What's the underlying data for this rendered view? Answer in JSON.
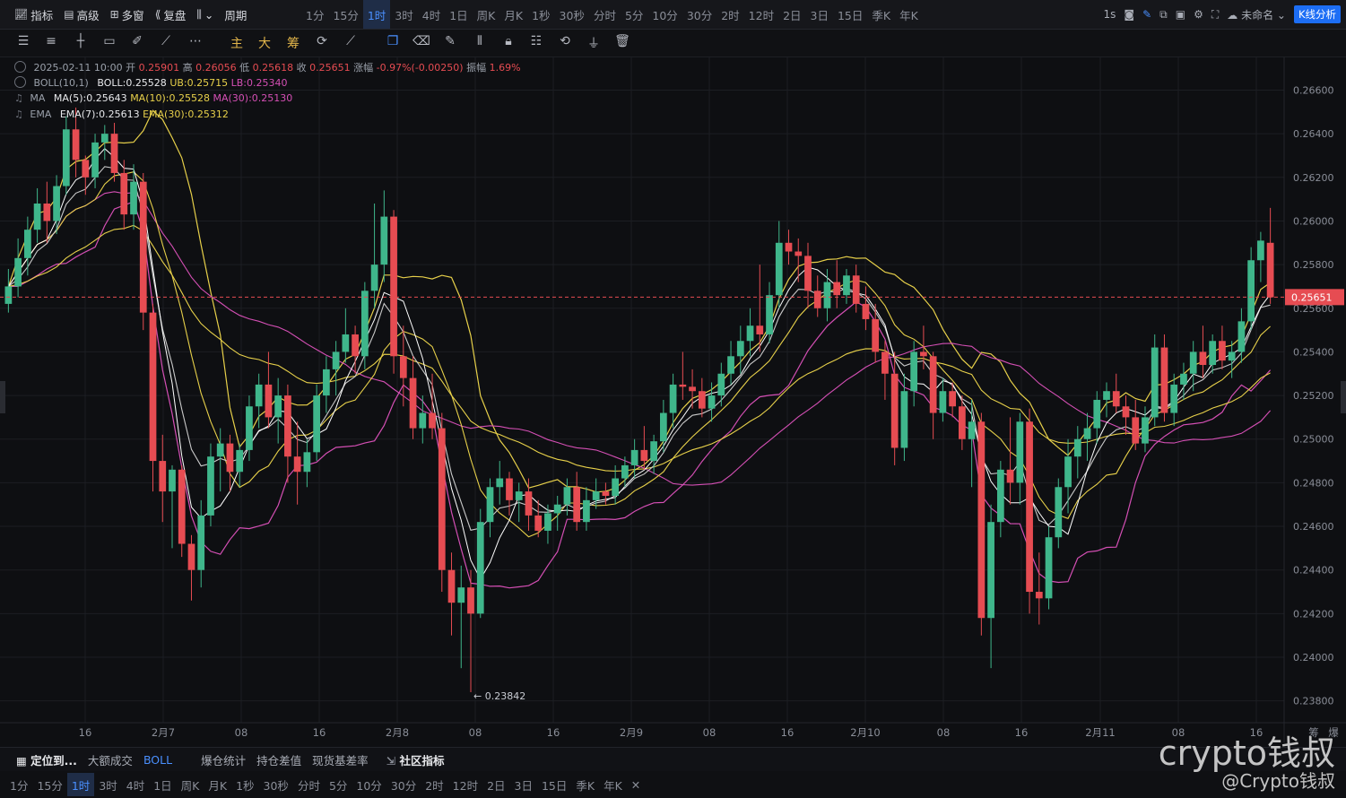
{
  "topbar": {
    "left_items": [
      {
        "icon": "indicator-icon",
        "label": "指标"
      },
      {
        "icon": "advanced-icon",
        "label": "高级"
      },
      {
        "icon": "multi-window-icon",
        "label": "多窗"
      },
      {
        "icon": "replay-icon",
        "label": "复盘"
      },
      {
        "icon": "candle-type-icon",
        "label": "⌄"
      },
      {
        "icon": "period-icon",
        "label": "周期"
      }
    ],
    "timeframes": [
      "1分",
      "15分",
      "1时",
      "3时",
      "4时",
      "1日",
      "周K",
      "月K",
      "1秒",
      "30秒",
      "分时",
      "5分",
      "10分",
      "30分",
      "2时",
      "12时",
      "2日",
      "3日",
      "15日",
      "季K",
      "年K"
    ],
    "active_timeframe": "1时",
    "right": {
      "interval": "1s",
      "layout_name": "未命名",
      "kline_button": "K线分析"
    }
  },
  "drawbar": {
    "tools": [
      "horizontal-lines-icon",
      "list-icon",
      "crosshair-line-icon",
      "rectangle-icon",
      "ruler-icon",
      "trend-line-icon",
      "more-icon"
    ],
    "quick": [
      "主",
      "大",
      "筹"
    ],
    "tools2": [
      "sync-icon",
      "measure-icon",
      "copy-icon",
      "eraser-icon",
      "pen-icon",
      "bars-icon",
      "lock-icon",
      "note-icon",
      "magnet-icon",
      "filter-icon",
      "trash-icon"
    ]
  },
  "legend": {
    "ohlc": {
      "date": "2025-02-11 10:00",
      "open_label": "开",
      "open": "0.25901",
      "high_label": "高",
      "high": "0.26056",
      "low_label": "低",
      "low": "0.25618",
      "close_label": "收",
      "close": "0.25651",
      "chg_label": "涨幅",
      "chg": "-0.97%(-0.00250)",
      "amp_label": "振幅",
      "amp": "1.69%"
    },
    "boll": {
      "name": "BOLL(10,1)",
      "mid": "BOLL:0.25528",
      "ub": "UB:0.25715",
      "lb": "LB:0.25340"
    },
    "ma": {
      "name": "MA",
      "ma5": "MA(5):0.25643",
      "ma10": "MA(10):0.25528",
      "ma30": "MA(30):0.25130"
    },
    "ema": {
      "name": "EMA",
      "ema7": "EMA(7):0.25613",
      "ema30": "EMA(30):0.25312"
    }
  },
  "chart_data": {
    "type": "candlestick",
    "interval": "1h",
    "yrange": [
      0.237,
      0.2675
    ],
    "y_ticks": [
      "0.26600",
      "0.26400",
      "0.26200",
      "0.26000",
      "0.25800",
      "0.25600",
      "0.25400",
      "0.25200",
      "0.25000",
      "0.24800",
      "0.24600",
      "0.24400",
      "0.24200",
      "0.24000",
      "0.23800"
    ],
    "x_labels": [
      "16",
      "2月7",
      "08",
      "16",
      "2月8",
      "08",
      "16",
      "2月9",
      "08",
      "16",
      "2月10",
      "08",
      "16",
      "2月11",
      "08",
      "16",
      "筹",
      "爆"
    ],
    "current_price": "0.25651",
    "low_annotation": "← 0.23842",
    "colors": {
      "up": "#3fb68b",
      "down": "#e64c52",
      "boll": "#e7d04a",
      "ma5": "#ffffff",
      "ma10": "#e7d04a",
      "ma30": "#d44fb4",
      "ema7": "#c9c9c9",
      "ema30": "#e7d04a",
      "current": "#e64c52"
    },
    "candles": [
      {
        "o": 0.2562,
        "h": 0.2578,
        "l": 0.2558,
        "c": 0.257
      },
      {
        "o": 0.257,
        "h": 0.2592,
        "l": 0.2565,
        "c": 0.2583
      },
      {
        "o": 0.2583,
        "h": 0.2602,
        "l": 0.2575,
        "c": 0.2596
      },
      {
        "o": 0.2596,
        "h": 0.2615,
        "l": 0.259,
        "c": 0.2608
      },
      {
        "o": 0.2608,
        "h": 0.2618,
        "l": 0.259,
        "c": 0.26
      },
      {
        "o": 0.26,
        "h": 0.2621,
        "l": 0.2594,
        "c": 0.2616
      },
      {
        "o": 0.2616,
        "h": 0.2648,
        "l": 0.2612,
        "c": 0.2642
      },
      {
        "o": 0.2642,
        "h": 0.2652,
        "l": 0.262,
        "c": 0.2628
      },
      {
        "o": 0.2628,
        "h": 0.263,
        "l": 0.2612,
        "c": 0.262
      },
      {
        "o": 0.262,
        "h": 0.264,
        "l": 0.2615,
        "c": 0.2636
      },
      {
        "o": 0.2636,
        "h": 0.2644,
        "l": 0.2628,
        "c": 0.264
      },
      {
        "o": 0.264,
        "h": 0.2645,
        "l": 0.2618,
        "c": 0.2622
      },
      {
        "o": 0.2622,
        "h": 0.2628,
        "l": 0.2596,
        "c": 0.2603
      },
      {
        "o": 0.2603,
        "h": 0.2626,
        "l": 0.2596,
        "c": 0.2618
      },
      {
        "o": 0.2618,
        "h": 0.2622,
        "l": 0.255,
        "c": 0.2558
      },
      {
        "o": 0.2558,
        "h": 0.2562,
        "l": 0.2476,
        "c": 0.249
      },
      {
        "o": 0.249,
        "h": 0.2502,
        "l": 0.2462,
        "c": 0.2476
      },
      {
        "o": 0.2476,
        "h": 0.2488,
        "l": 0.245,
        "c": 0.2486
      },
      {
        "o": 0.2486,
        "h": 0.2488,
        "l": 0.2446,
        "c": 0.2452
      },
      {
        "o": 0.2452,
        "h": 0.2456,
        "l": 0.2426,
        "c": 0.244
      },
      {
        "o": 0.244,
        "h": 0.2472,
        "l": 0.2432,
        "c": 0.2465
      },
      {
        "o": 0.2465,
        "h": 0.2498,
        "l": 0.246,
        "c": 0.2492
      },
      {
        "o": 0.2492,
        "h": 0.2505,
        "l": 0.2476,
        "c": 0.2498
      },
      {
        "o": 0.2498,
        "h": 0.2502,
        "l": 0.2476,
        "c": 0.2485
      },
      {
        "o": 0.2485,
        "h": 0.2498,
        "l": 0.2478,
        "c": 0.2495
      },
      {
        "o": 0.2495,
        "h": 0.252,
        "l": 0.249,
        "c": 0.2515
      },
      {
        "o": 0.2515,
        "h": 0.253,
        "l": 0.2505,
        "c": 0.2525
      },
      {
        "o": 0.2525,
        "h": 0.254,
        "l": 0.2505,
        "c": 0.251
      },
      {
        "o": 0.251,
        "h": 0.2528,
        "l": 0.2498,
        "c": 0.252
      },
      {
        "o": 0.252,
        "h": 0.2525,
        "l": 0.248,
        "c": 0.2492
      },
      {
        "o": 0.2492,
        "h": 0.2508,
        "l": 0.247,
        "c": 0.2485
      },
      {
        "o": 0.2485,
        "h": 0.25,
        "l": 0.2478,
        "c": 0.2494
      },
      {
        "o": 0.2494,
        "h": 0.2525,
        "l": 0.249,
        "c": 0.252
      },
      {
        "o": 0.252,
        "h": 0.2538,
        "l": 0.2512,
        "c": 0.2532
      },
      {
        "o": 0.2532,
        "h": 0.2545,
        "l": 0.252,
        "c": 0.254
      },
      {
        "o": 0.254,
        "h": 0.256,
        "l": 0.2535,
        "c": 0.2548
      },
      {
        "o": 0.2548,
        "h": 0.2552,
        "l": 0.253,
        "c": 0.2538
      },
      {
        "o": 0.2538,
        "h": 0.2572,
        "l": 0.2532,
        "c": 0.2568
      },
      {
        "o": 0.2568,
        "h": 0.2608,
        "l": 0.256,
        "c": 0.258
      },
      {
        "o": 0.258,
        "h": 0.2614,
        "l": 0.2572,
        "c": 0.2602
      },
      {
        "o": 0.2602,
        "h": 0.2605,
        "l": 0.253,
        "c": 0.2538
      },
      {
        "o": 0.2538,
        "h": 0.2552,
        "l": 0.2515,
        "c": 0.2528
      },
      {
        "o": 0.2528,
        "h": 0.2538,
        "l": 0.25,
        "c": 0.2505
      },
      {
        "o": 0.2505,
        "h": 0.252,
        "l": 0.2498,
        "c": 0.2512
      },
      {
        "o": 0.2512,
        "h": 0.253,
        "l": 0.25,
        "c": 0.2505
      },
      {
        "o": 0.2505,
        "h": 0.2512,
        "l": 0.243,
        "c": 0.244
      },
      {
        "o": 0.244,
        "h": 0.2448,
        "l": 0.241,
        "c": 0.2425
      },
      {
        "o": 0.2425,
        "h": 0.2442,
        "l": 0.2395,
        "c": 0.2432
      },
      {
        "o": 0.2432,
        "h": 0.244,
        "l": 0.2384,
        "c": 0.242
      },
      {
        "o": 0.242,
        "h": 0.2468,
        "l": 0.2418,
        "c": 0.2462
      },
      {
        "o": 0.2462,
        "h": 0.2482,
        "l": 0.2455,
        "c": 0.2478
      },
      {
        "o": 0.2478,
        "h": 0.249,
        "l": 0.247,
        "c": 0.2482
      },
      {
        "o": 0.2482,
        "h": 0.2485,
        "l": 0.2465,
        "c": 0.2472
      },
      {
        "o": 0.2472,
        "h": 0.248,
        "l": 0.2462,
        "c": 0.2476
      },
      {
        "o": 0.2476,
        "h": 0.2482,
        "l": 0.2458,
        "c": 0.2465
      },
      {
        "o": 0.2465,
        "h": 0.2472,
        "l": 0.2455,
        "c": 0.2458
      },
      {
        "o": 0.2458,
        "h": 0.247,
        "l": 0.2452,
        "c": 0.2466
      },
      {
        "o": 0.2466,
        "h": 0.2474,
        "l": 0.2458,
        "c": 0.247
      },
      {
        "o": 0.247,
        "h": 0.2482,
        "l": 0.2465,
        "c": 0.2478
      },
      {
        "o": 0.2478,
        "h": 0.2485,
        "l": 0.2458,
        "c": 0.2462
      },
      {
        "o": 0.2462,
        "h": 0.2478,
        "l": 0.2458,
        "c": 0.2472
      },
      {
        "o": 0.2472,
        "h": 0.2482,
        "l": 0.2468,
        "c": 0.2476
      },
      {
        "o": 0.2476,
        "h": 0.248,
        "l": 0.247,
        "c": 0.2474
      },
      {
        "o": 0.2474,
        "h": 0.2488,
        "l": 0.247,
        "c": 0.2482
      },
      {
        "o": 0.2482,
        "h": 0.2492,
        "l": 0.2478,
        "c": 0.2488
      },
      {
        "o": 0.2488,
        "h": 0.25,
        "l": 0.2482,
        "c": 0.2495
      },
      {
        "o": 0.2495,
        "h": 0.2506,
        "l": 0.2486,
        "c": 0.249
      },
      {
        "o": 0.249,
        "h": 0.2502,
        "l": 0.2484,
        "c": 0.2499
      },
      {
        "o": 0.2499,
        "h": 0.2518,
        "l": 0.2494,
        "c": 0.2512
      },
      {
        "o": 0.2512,
        "h": 0.253,
        "l": 0.2505,
        "c": 0.2525
      },
      {
        "o": 0.2525,
        "h": 0.254,
        "l": 0.2518,
        "c": 0.2524
      },
      {
        "o": 0.2524,
        "h": 0.2532,
        "l": 0.2514,
        "c": 0.2522
      },
      {
        "o": 0.2522,
        "h": 0.2528,
        "l": 0.251,
        "c": 0.2514
      },
      {
        "o": 0.2514,
        "h": 0.2526,
        "l": 0.2508,
        "c": 0.252
      },
      {
        "o": 0.252,
        "h": 0.2535,
        "l": 0.2515,
        "c": 0.253
      },
      {
        "o": 0.253,
        "h": 0.2545,
        "l": 0.2525,
        "c": 0.2538
      },
      {
        "o": 0.2538,
        "h": 0.2552,
        "l": 0.253,
        "c": 0.2545
      },
      {
        "o": 0.2545,
        "h": 0.256,
        "l": 0.2538,
        "c": 0.2552
      },
      {
        "o": 0.2552,
        "h": 0.258,
        "l": 0.254,
        "c": 0.2548
      },
      {
        "o": 0.2548,
        "h": 0.2572,
        "l": 0.2544,
        "c": 0.2566
      },
      {
        "o": 0.2566,
        "h": 0.26,
        "l": 0.256,
        "c": 0.259
      },
      {
        "o": 0.259,
        "h": 0.2596,
        "l": 0.258,
        "c": 0.2586
      },
      {
        "o": 0.2586,
        "h": 0.2592,
        "l": 0.2572,
        "c": 0.2584
      },
      {
        "o": 0.2584,
        "h": 0.259,
        "l": 0.256,
        "c": 0.2568
      },
      {
        "o": 0.2568,
        "h": 0.2575,
        "l": 0.2556,
        "c": 0.256
      },
      {
        "o": 0.256,
        "h": 0.2578,
        "l": 0.2554,
        "c": 0.2572
      },
      {
        "o": 0.2572,
        "h": 0.2582,
        "l": 0.256,
        "c": 0.2566
      },
      {
        "o": 0.2566,
        "h": 0.2578,
        "l": 0.2562,
        "c": 0.2575
      },
      {
        "o": 0.2575,
        "h": 0.258,
        "l": 0.2558,
        "c": 0.2562
      },
      {
        "o": 0.2562,
        "h": 0.257,
        "l": 0.255,
        "c": 0.2555
      },
      {
        "o": 0.2555,
        "h": 0.2562,
        "l": 0.2535,
        "c": 0.254
      },
      {
        "o": 0.254,
        "h": 0.2545,
        "l": 0.2518,
        "c": 0.253
      },
      {
        "o": 0.253,
        "h": 0.254,
        "l": 0.2488,
        "c": 0.2496
      },
      {
        "o": 0.2496,
        "h": 0.253,
        "l": 0.249,
        "c": 0.2522
      },
      {
        "o": 0.2522,
        "h": 0.2545,
        "l": 0.2515,
        "c": 0.254
      },
      {
        "o": 0.254,
        "h": 0.2552,
        "l": 0.2532,
        "c": 0.2538
      },
      {
        "o": 0.2538,
        "h": 0.254,
        "l": 0.25,
        "c": 0.2512
      },
      {
        "o": 0.2512,
        "h": 0.2528,
        "l": 0.2508,
        "c": 0.2522
      },
      {
        "o": 0.2522,
        "h": 0.2526,
        "l": 0.251,
        "c": 0.2515
      },
      {
        "o": 0.2515,
        "h": 0.252,
        "l": 0.2495,
        "c": 0.25
      },
      {
        "o": 0.25,
        "h": 0.2518,
        "l": 0.2478,
        "c": 0.2508
      },
      {
        "o": 0.2508,
        "h": 0.2512,
        "l": 0.241,
        "c": 0.2418
      },
      {
        "o": 0.2418,
        "h": 0.247,
        "l": 0.2395,
        "c": 0.2462
      },
      {
        "o": 0.2462,
        "h": 0.249,
        "l": 0.2455,
        "c": 0.2486
      },
      {
        "o": 0.2486,
        "h": 0.251,
        "l": 0.247,
        "c": 0.248
      },
      {
        "o": 0.248,
        "h": 0.2512,
        "l": 0.247,
        "c": 0.2508
      },
      {
        "o": 0.2508,
        "h": 0.2514,
        "l": 0.242,
        "c": 0.243
      },
      {
        "o": 0.243,
        "h": 0.2448,
        "l": 0.2415,
        "c": 0.2427
      },
      {
        "o": 0.2427,
        "h": 0.246,
        "l": 0.2422,
        "c": 0.2455
      },
      {
        "o": 0.2455,
        "h": 0.2482,
        "l": 0.245,
        "c": 0.2478
      },
      {
        "o": 0.2478,
        "h": 0.25,
        "l": 0.2466,
        "c": 0.2492
      },
      {
        "o": 0.2492,
        "h": 0.2506,
        "l": 0.2482,
        "c": 0.25
      },
      {
        "o": 0.25,
        "h": 0.2512,
        "l": 0.249,
        "c": 0.2505
      },
      {
        "o": 0.2505,
        "h": 0.2522,
        "l": 0.2498,
        "c": 0.2518
      },
      {
        "o": 0.2518,
        "h": 0.2526,
        "l": 0.251,
        "c": 0.2522
      },
      {
        "o": 0.2522,
        "h": 0.253,
        "l": 0.2512,
        "c": 0.2515
      },
      {
        "o": 0.2515,
        "h": 0.252,
        "l": 0.2502,
        "c": 0.251
      },
      {
        "o": 0.251,
        "h": 0.2518,
        "l": 0.2495,
        "c": 0.2498
      },
      {
        "o": 0.2498,
        "h": 0.2515,
        "l": 0.2494,
        "c": 0.251
      },
      {
        "o": 0.251,
        "h": 0.2548,
        "l": 0.2506,
        "c": 0.2542
      },
      {
        "o": 0.2542,
        "h": 0.2548,
        "l": 0.2508,
        "c": 0.2512
      },
      {
        "o": 0.2512,
        "h": 0.253,
        "l": 0.2506,
        "c": 0.2525
      },
      {
        "o": 0.2525,
        "h": 0.2535,
        "l": 0.2518,
        "c": 0.253
      },
      {
        "o": 0.253,
        "h": 0.2545,
        "l": 0.2522,
        "c": 0.254
      },
      {
        "o": 0.254,
        "h": 0.2552,
        "l": 0.2528,
        "c": 0.2534
      },
      {
        "o": 0.2534,
        "h": 0.2548,
        "l": 0.253,
        "c": 0.2545
      },
      {
        "o": 0.2545,
        "h": 0.2552,
        "l": 0.2532,
        "c": 0.2536
      },
      {
        "o": 0.2536,
        "h": 0.2545,
        "l": 0.2528,
        "c": 0.254
      },
      {
        "o": 0.254,
        "h": 0.256,
        "l": 0.2535,
        "c": 0.2554
      },
      {
        "o": 0.2554,
        "h": 0.2588,
        "l": 0.255,
        "c": 0.2582
      },
      {
        "o": 0.2582,
        "h": 0.2595,
        "l": 0.2572,
        "c": 0.2591
      },
      {
        "o": 0.259,
        "h": 0.2606,
        "l": 0.2562,
        "c": 0.2565
      }
    ]
  },
  "bottombar1": {
    "locate": "定位到...",
    "items": [
      "大额成交",
      "BOLL",
      "爆仓统计",
      "持仓差值",
      "现货基差率"
    ],
    "community": "社区指标"
  },
  "bottombar2": {
    "timeframes": [
      "1分",
      "15分",
      "1时",
      "3时",
      "4时",
      "1日",
      "周K",
      "月K",
      "1秒",
      "30秒",
      "分时",
      "5分",
      "10分",
      "30分",
      "2时",
      "12时",
      "2日",
      "3日",
      "15日",
      "季K",
      "年K"
    ],
    "active": "1时",
    "close": "✕"
  },
  "watermark": {
    "line1": "crypto钱叔",
    "line2": "@Crypto钱叔"
  }
}
